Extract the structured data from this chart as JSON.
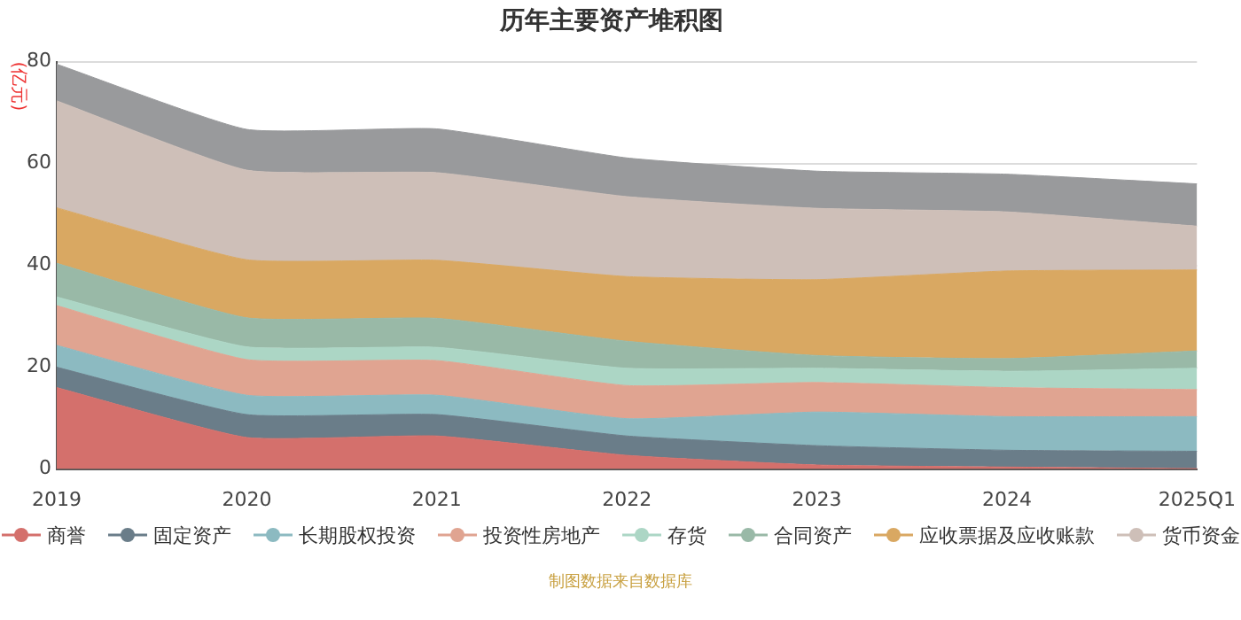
{
  "chart_data": {
    "type": "area",
    "title": "历年主要资产堆积图",
    "ylabel": "(亿元)",
    "categories": [
      "2019",
      "2020",
      "2021",
      "2022",
      "2023",
      "2024",
      "2025Q1"
    ],
    "stacked": true,
    "ylim": [
      0,
      80
    ],
    "yticks": [
      0,
      20,
      40,
      60,
      80
    ],
    "grid": "y",
    "legend": "bottom",
    "marker": "none",
    "annotations": [
      "制图数据来自数据库"
    ],
    "series": [
      {
        "name": "商誉",
        "color": "#d4706c",
        "values": [
          16,
          6.2,
          6.5,
          2.7,
          0.8,
          0.4,
          0.1
        ]
      },
      {
        "name": "固定资产",
        "color": "#6a7d89",
        "values": [
          4,
          4.5,
          4.2,
          3.8,
          3.8,
          3.3,
          3.4
        ]
      },
      {
        "name": "长期股权投资",
        "color": "#8cbac1",
        "values": [
          4.3,
          3.8,
          3.8,
          3.4,
          6.6,
          6.6,
          6.8
        ]
      },
      {
        "name": "投资性房地产",
        "color": "#e0a491",
        "values": [
          7.8,
          7,
          6.8,
          6.5,
          5.8,
          5.7,
          5.3
        ]
      },
      {
        "name": "存货",
        "color": "#acd6c5",
        "values": [
          1.7,
          2.5,
          2.6,
          3.4,
          2.8,
          3.2,
          4.2
        ]
      },
      {
        "name": "合同资产",
        "color": "#99b9a7",
        "values": [
          6.6,
          5.7,
          5.7,
          5.3,
          2.5,
          2.5,
          3.4
        ]
      },
      {
        "name": "应收票据及应收账款",
        "color": "#d9a862",
        "values": [
          10.9,
          11.4,
          11.4,
          12.7,
          14.9,
          17.2,
          15.9
        ]
      },
      {
        "name": "货币资金",
        "color": "#cebfb8",
        "values": [
          21,
          17.6,
          17.2,
          15.7,
          14,
          11.6,
          8.6
        ]
      },
      {
        "color": "#999a9c",
        "values": [
          7.2,
          8,
          8.6,
          7.6,
          7.3,
          7.4,
          8.3
        ]
      }
    ]
  }
}
